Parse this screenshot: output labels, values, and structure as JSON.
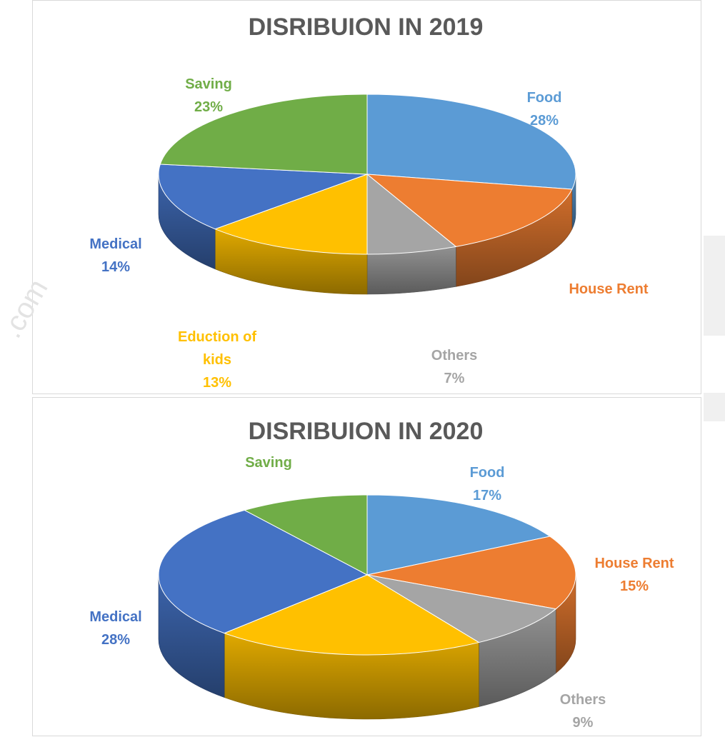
{
  "watermark_text": ".com",
  "colors": {
    "food": "#5B9BD5",
    "house_rent": "#ED7D31",
    "others": "#A5A5A5",
    "education": "#FFC000",
    "medical": "#4472C4",
    "saving": "#70AD47",
    "title": "#595959"
  },
  "chart_data": [
    {
      "type": "pie",
      "title": "DISRIBUION IN 2019",
      "slices": [
        {
          "key": "food",
          "label": "Food",
          "value": 28,
          "value_label": "28%"
        },
        {
          "key": "house_rent",
          "label": "House Rent",
          "value": 15,
          "value_label": ""
        },
        {
          "key": "others",
          "label": "Others",
          "value": 7,
          "value_label": "7%"
        },
        {
          "key": "education",
          "label": "Eduction of kids",
          "label_lines": [
            "Eduction of",
            "kids"
          ],
          "value": 13,
          "value_label": "13%"
        },
        {
          "key": "medical",
          "label": "Medical",
          "value": 14,
          "value_label": "14%"
        },
        {
          "key": "saving",
          "label": "Saving",
          "value": 23,
          "value_label": "23%"
        }
      ]
    },
    {
      "type": "pie",
      "title": "DISRIBUION IN 2020",
      "slices": [
        {
          "key": "food",
          "label": "Food",
          "value": 17,
          "value_label": "17%"
        },
        {
          "key": "house_rent",
          "label": "House Rent",
          "value": 15,
          "value_label": "15%"
        },
        {
          "key": "others",
          "label": "Others",
          "value": 9,
          "value_label": "9%"
        },
        {
          "key": "education",
          "label": "",
          "value": 21,
          "value_label": ""
        },
        {
          "key": "medical",
          "label": "Medical",
          "value": 28,
          "value_label": "28%"
        },
        {
          "key": "saving",
          "label": "Saving",
          "value": 10,
          "value_label": ""
        }
      ]
    }
  ]
}
